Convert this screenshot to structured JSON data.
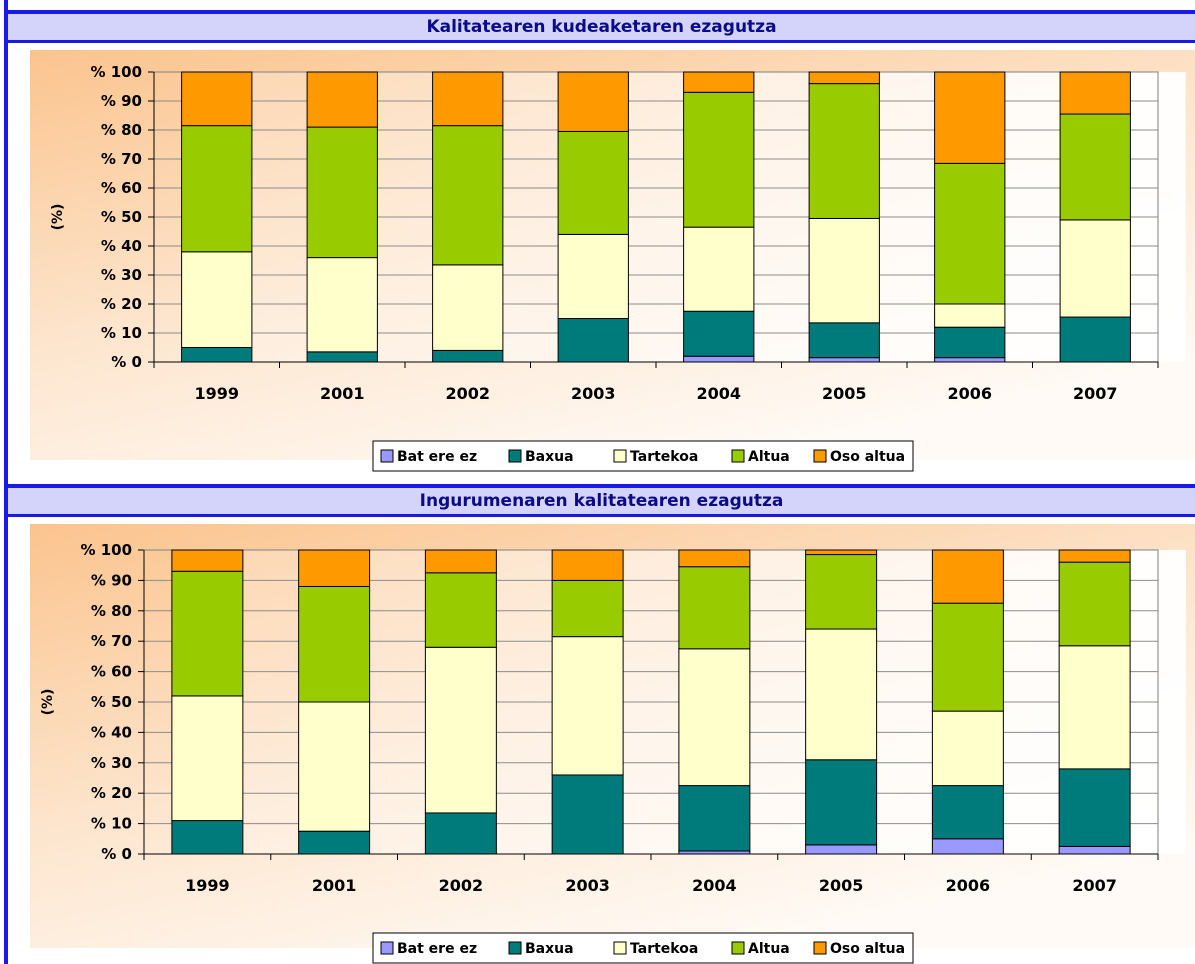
{
  "colors": {
    "Bat ere ez": "#9999ff",
    "Baxua": "#007b7b",
    "Tartekoa": "#ffffcc",
    "Altua": "#99cc00",
    "Oso altua": "#ff9900",
    "banner_bg": "#d4d4fa",
    "banner_border": "#1a1ae6",
    "banner_text": "#0b0b8a"
  },
  "chart_data": [
    {
      "type": "bar",
      "stacked": true,
      "title": "Kalitatearen kudeaketaren ezagutza",
      "ylabel": "(%)",
      "ylim": [
        0,
        100
      ],
      "yticks": [
        "% 0",
        "% 10",
        "% 20",
        "% 30",
        "% 40",
        "% 50",
        "% 60",
        "% 70",
        "% 80",
        "% 90",
        "% 100"
      ],
      "grid": true,
      "legend_position": "bottom",
      "categories": [
        "1999",
        "2001",
        "2002",
        "2003",
        "2004",
        "2005",
        "2006",
        "2007"
      ],
      "series": [
        {
          "name": "Bat ere ez",
          "values": [
            0,
            0,
            0,
            0,
            2,
            1.5,
            1.5,
            0
          ]
        },
        {
          "name": "Baxua",
          "values": [
            5,
            3.5,
            4,
            15,
            15.5,
            12,
            10.5,
            15.5
          ]
        },
        {
          "name": "Tartekoa",
          "values": [
            33,
            32.5,
            29.5,
            29,
            29,
            36,
            8,
            33.5
          ]
        },
        {
          "name": "Altua",
          "values": [
            43.5,
            45,
            48,
            35.5,
            46.5,
            46.5,
            48.5,
            36.5
          ]
        },
        {
          "name": "Oso altua",
          "values": [
            18.5,
            19,
            18.5,
            20.5,
            7,
            4,
            31.5,
            14.5
          ]
        }
      ]
    },
    {
      "type": "bar",
      "stacked": true,
      "title": "Ingurumenaren kalitatearen ezagutza",
      "ylabel": "(%)",
      "ylim": [
        0,
        100
      ],
      "yticks": [
        "% 0",
        "% 10",
        "% 20",
        "% 30",
        "% 40",
        "% 50",
        "% 60",
        "% 70",
        "% 80",
        "% 90",
        "% 100"
      ],
      "grid": true,
      "legend_position": "bottom",
      "categories": [
        "1999",
        "2001",
        "2002",
        "2003",
        "2004",
        "2005",
        "2006",
        "2007"
      ],
      "series": [
        {
          "name": "Bat ere ez",
          "values": [
            0,
            0,
            0,
            0,
            1,
            3,
            5,
            2.5
          ]
        },
        {
          "name": "Baxua",
          "values": [
            11,
            7.5,
            13.5,
            26,
            21.5,
            28,
            17.5,
            25.5
          ]
        },
        {
          "name": "Tartekoa",
          "values": [
            41,
            42.5,
            54.5,
            45.5,
            45,
            43,
            24.5,
            40.5
          ]
        },
        {
          "name": "Altua",
          "values": [
            41,
            38,
            24.5,
            18.5,
            27,
            24.5,
            35.5,
            27.5
          ]
        },
        {
          "name": "Oso altua",
          "values": [
            7,
            12,
            7.5,
            10,
            5.5,
            1.5,
            17.5,
            4
          ]
        }
      ]
    }
  ]
}
